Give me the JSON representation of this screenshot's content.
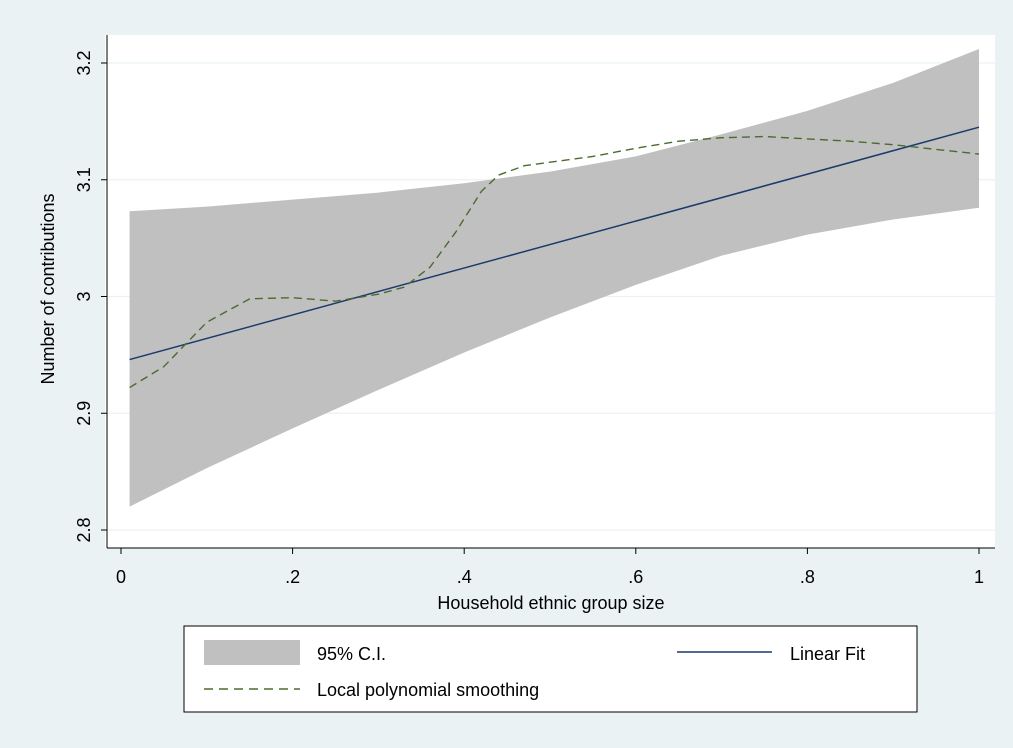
{
  "chart_data": {
    "type": "line",
    "title": "",
    "xlabel": "Household ethnic group size",
    "ylabel": "Number of contributions",
    "xlim": [
      0,
      1
    ],
    "ylim": [
      2.8,
      3.2
    ],
    "x_ticks": [
      {
        "value": 0,
        "label": "0"
      },
      {
        "value": 0.2,
        "label": ".2"
      },
      {
        "value": 0.4,
        "label": ".4"
      },
      {
        "value": 0.6,
        "label": ".6"
      },
      {
        "value": 0.8,
        "label": ".8"
      },
      {
        "value": 1,
        "label": "1"
      }
    ],
    "y_ticks": [
      {
        "value": 2.8,
        "label": "2.8"
      },
      {
        "value": 2.9,
        "label": "2.9"
      },
      {
        "value": 3.0,
        "label": "3"
      },
      {
        "value": 3.1,
        "label": "3.1"
      },
      {
        "value": 3.2,
        "label": "3.2"
      }
    ],
    "grid": true,
    "legend_position": "bottom",
    "colors": {
      "plot_background": "#ffffff",
      "outer_background": "#eaf2f3",
      "ci_band": "#c0c0c0",
      "linear_fit": "#1a3a6b",
      "smooth": "#4b6b2e",
      "grid": "#eaf2f3"
    },
    "series": [
      {
        "name": "95% C.I.",
        "kind": "band",
        "x": [
          0.01,
          0.1,
          0.2,
          0.3,
          0.4,
          0.5,
          0.6,
          0.7,
          0.8,
          0.9,
          1.0
        ],
        "lower": [
          2.82,
          2.853,
          2.887,
          2.92,
          2.952,
          2.982,
          3.01,
          3.035,
          3.053,
          3.066,
          3.076
        ],
        "upper": [
          3.073,
          3.077,
          3.083,
          3.089,
          3.097,
          3.107,
          3.12,
          3.139,
          3.159,
          3.183,
          3.212
        ]
      },
      {
        "name": "Linear Fit",
        "kind": "line",
        "x": [
          0.01,
          1.0
        ],
        "y": [
          2.946,
          3.145
        ]
      },
      {
        "name": "Local polynomial smoothing",
        "kind": "dashed-line",
        "x": [
          0.01,
          0.05,
          0.1,
          0.15,
          0.2,
          0.25,
          0.3,
          0.33,
          0.36,
          0.39,
          0.42,
          0.44,
          0.47,
          0.5,
          0.55,
          0.6,
          0.65,
          0.7,
          0.75,
          0.8,
          0.85,
          0.9,
          0.95,
          1.0
        ],
        "y": [
          2.922,
          2.94,
          2.978,
          2.998,
          2.999,
          2.996,
          3.002,
          3.008,
          3.025,
          3.055,
          3.09,
          3.104,
          3.112,
          3.115,
          3.12,
          3.127,
          3.133,
          3.136,
          3.137,
          3.135,
          3.133,
          3.13,
          3.126,
          3.122
        ]
      }
    ]
  },
  "legend": {
    "ci_label": "95% C.I.",
    "linear_label": "Linear Fit",
    "smooth_label": "Local polynomial smoothing"
  }
}
